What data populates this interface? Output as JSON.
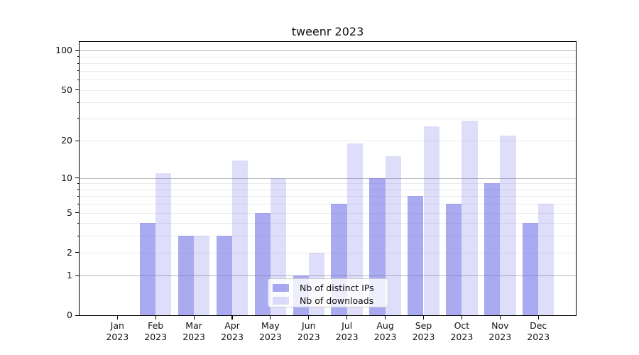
{
  "title": "tweenr 2023",
  "chart_data": {
    "type": "bar",
    "title": "tweenr 2023",
    "categories": [
      "Jan",
      "Feb",
      "Mar",
      "Apr",
      "May",
      "Jun",
      "Jul",
      "Aug",
      "Sep",
      "Oct",
      "Nov",
      "Dec"
    ],
    "year_label": "2023",
    "series": [
      {
        "name": "Nb of distinct IPs",
        "color": "rgba(100,100,230,0.55)",
        "color_hex_on_white": "#aaaaf1",
        "values": [
          0,
          4,
          3,
          3,
          5,
          1,
          6,
          10,
          7,
          6,
          9,
          4
        ]
      },
      {
        "name": "Nb of downloads",
        "color": "rgba(100,100,230,0.21)",
        "color_hex_on_white": "#dedef9",
        "values": [
          0,
          11,
          3,
          14,
          10,
          2,
          19,
          15,
          26,
          29,
          22,
          6
        ]
      }
    ],
    "xlabel": "",
    "ylabel": "",
    "yscale": "log1p",
    "ylim": [
      0,
      116
    ],
    "y_ticks": [
      100,
      50,
      20,
      10,
      5,
      2,
      1,
      0
    ],
    "y_major_gridlines": [
      1,
      10,
      100
    ],
    "y_minor_gridlines": [
      2,
      3,
      4,
      5,
      6,
      7,
      8,
      9,
      20,
      30,
      40,
      50,
      60,
      70,
      80,
      90
    ],
    "y_minor_ticks": [
      3,
      4,
      6,
      7,
      8,
      9,
      30,
      40,
      60,
      70,
      80,
      90
    ],
    "grid": true,
    "legend_position": "lower center"
  },
  "legend": {
    "items": [
      {
        "label": "Nb of distinct IPs"
      },
      {
        "label": "Nb of downloads"
      }
    ]
  },
  "colors": {
    "major_grid": "#b9b9b9",
    "minor_grid": "#ebebeb",
    "axis": "#000000",
    "text": "#111111",
    "legend_border": "#cccccc"
  }
}
